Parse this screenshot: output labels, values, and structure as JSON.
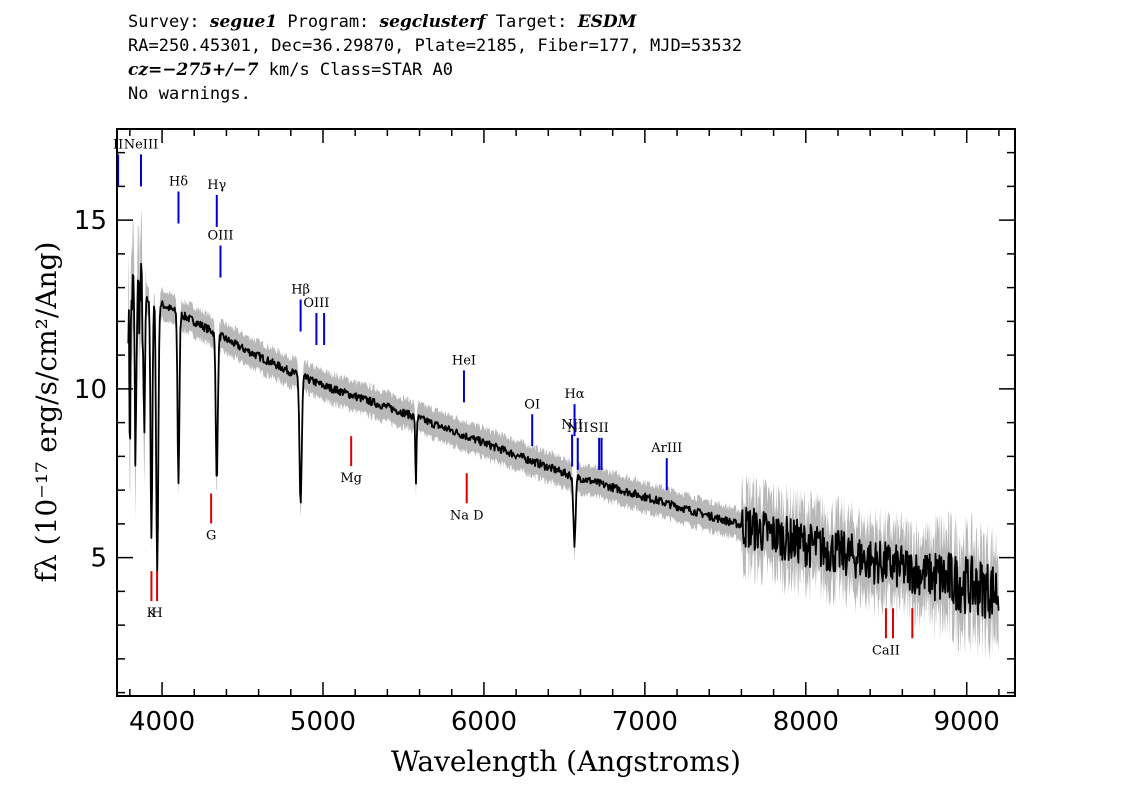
{
  "header": {
    "line1": {
      "survey_label": "Survey: ",
      "survey": "segue1",
      "program_label": " Program: ",
      "program": "segclusterf",
      "target_label": " Target: ",
      "target": "ESDM"
    },
    "line2": "RA=250.45301, Dec=36.29870, Plate=2185, Fiber=177, MJD=53532",
    "line3": {
      "cz_label": "cz=",
      "cz": "−275+/−7",
      "rest": " km/s Class=STAR A0"
    },
    "line4": "No warnings."
  },
  "chart_data": {
    "type": "line",
    "xlabel": "Wavelength (Angstroms)",
    "ylabel": "fλ (10⁻¹⁷ erg/s/cm²/Ang)",
    "xlim": [
      3720,
      9300
    ],
    "ylim": [
      0.9,
      17.7
    ],
    "x_ticks": [
      4000,
      5000,
      6000,
      7000,
      8000,
      9000
    ],
    "y_ticks": [
      5,
      10,
      15
    ],
    "colors": {
      "flux": "#000000",
      "error": "#b8b8b8",
      "emission": "#0000cc",
      "absorption": "#dd0000"
    },
    "continuum": [
      [
        3800,
        12.8
      ],
      [
        4000,
        12.5
      ],
      [
        4200,
        12.0
      ],
      [
        4500,
        11.2
      ],
      [
        4800,
        10.5
      ],
      [
        5000,
        10.1
      ],
      [
        5500,
        9.3
      ],
      [
        6000,
        8.4
      ],
      [
        6500,
        7.5
      ],
      [
        7000,
        6.8
      ],
      [
        7500,
        6.1
      ],
      [
        8000,
        5.4
      ],
      [
        8500,
        4.8
      ],
      [
        9000,
        4.2
      ],
      [
        9200,
        4.0
      ]
    ],
    "absorption_features": [
      {
        "x": 3800,
        "depth": 4.0,
        "width": 6
      },
      {
        "x": 3835,
        "depth": 5.5,
        "width": 6
      },
      {
        "x": 3889,
        "depth": 4.5,
        "width": 7
      },
      {
        "x": 3934,
        "depth": 7.0,
        "width": 8
      },
      {
        "x": 3970,
        "depth": 8.0,
        "width": 9
      },
      {
        "x": 4102,
        "depth": 5.0,
        "width": 8
      },
      {
        "x": 4340,
        "depth": 4.3,
        "width": 9
      },
      {
        "x": 4861,
        "depth": 3.8,
        "width": 10
      },
      {
        "x": 5577,
        "depth": 2.0,
        "width": 5
      },
      {
        "x": 6563,
        "depth": 2.0,
        "width": 10
      }
    ],
    "emission_lines": [
      {
        "label": "II",
        "x": 3727,
        "y": 16.0
      },
      {
        "label": "NeIII",
        "x": 3869,
        "y": 16.0
      },
      {
        "label": "Hδ",
        "x": 4102,
        "y": 14.9
      },
      {
        "label": "Hγ",
        "x": 4340,
        "y": 14.8
      },
      {
        "label": "OIII",
        "x": 4363,
        "y": 13.3
      },
      {
        "label": "Hβ",
        "x": 4861,
        "y": 11.7
      },
      {
        "label": "OIII",
        "x": 4959,
        "y": 11.3
      },
      {
        "label": "",
        "x": 5007,
        "y": 11.3
      },
      {
        "label": "HeI",
        "x": 5876,
        "y": 9.6
      },
      {
        "label": "OI",
        "x": 6300,
        "y": 8.3
      },
      {
        "label": "NII",
        "x": 6548,
        "y": 7.7
      },
      {
        "label": "Hα",
        "x": 6563,
        "y": 8.6
      },
      {
        "label": "NII",
        "x": 6583,
        "y": 7.6
      },
      {
        "label": "SII",
        "x": 6716,
        "y": 7.6
      },
      {
        "label": "",
        "x": 6731,
        "y": 7.6
      },
      {
        "label": "ArIII",
        "x": 7136,
        "y": 7.0
      }
    ],
    "absorption_lines": [
      {
        "label": "K",
        "x": 3934,
        "y": 4.6
      },
      {
        "label": "H",
        "x": 3969,
        "y": 4.6
      },
      {
        "label": "G",
        "x": 4305,
        "y": 6.9
      },
      {
        "label": "Mg",
        "x": 5175,
        "y": 8.6
      },
      {
        "label": "Na  D",
        "x": 5893,
        "y": 7.5
      },
      {
        "label": "CaII",
        "x": 8498,
        "y": 3.5
      },
      {
        "label": "",
        "x": 8542,
        "y": 3.5
      },
      {
        "label": "",
        "x": 8662,
        "y": 3.5
      }
    ]
  }
}
